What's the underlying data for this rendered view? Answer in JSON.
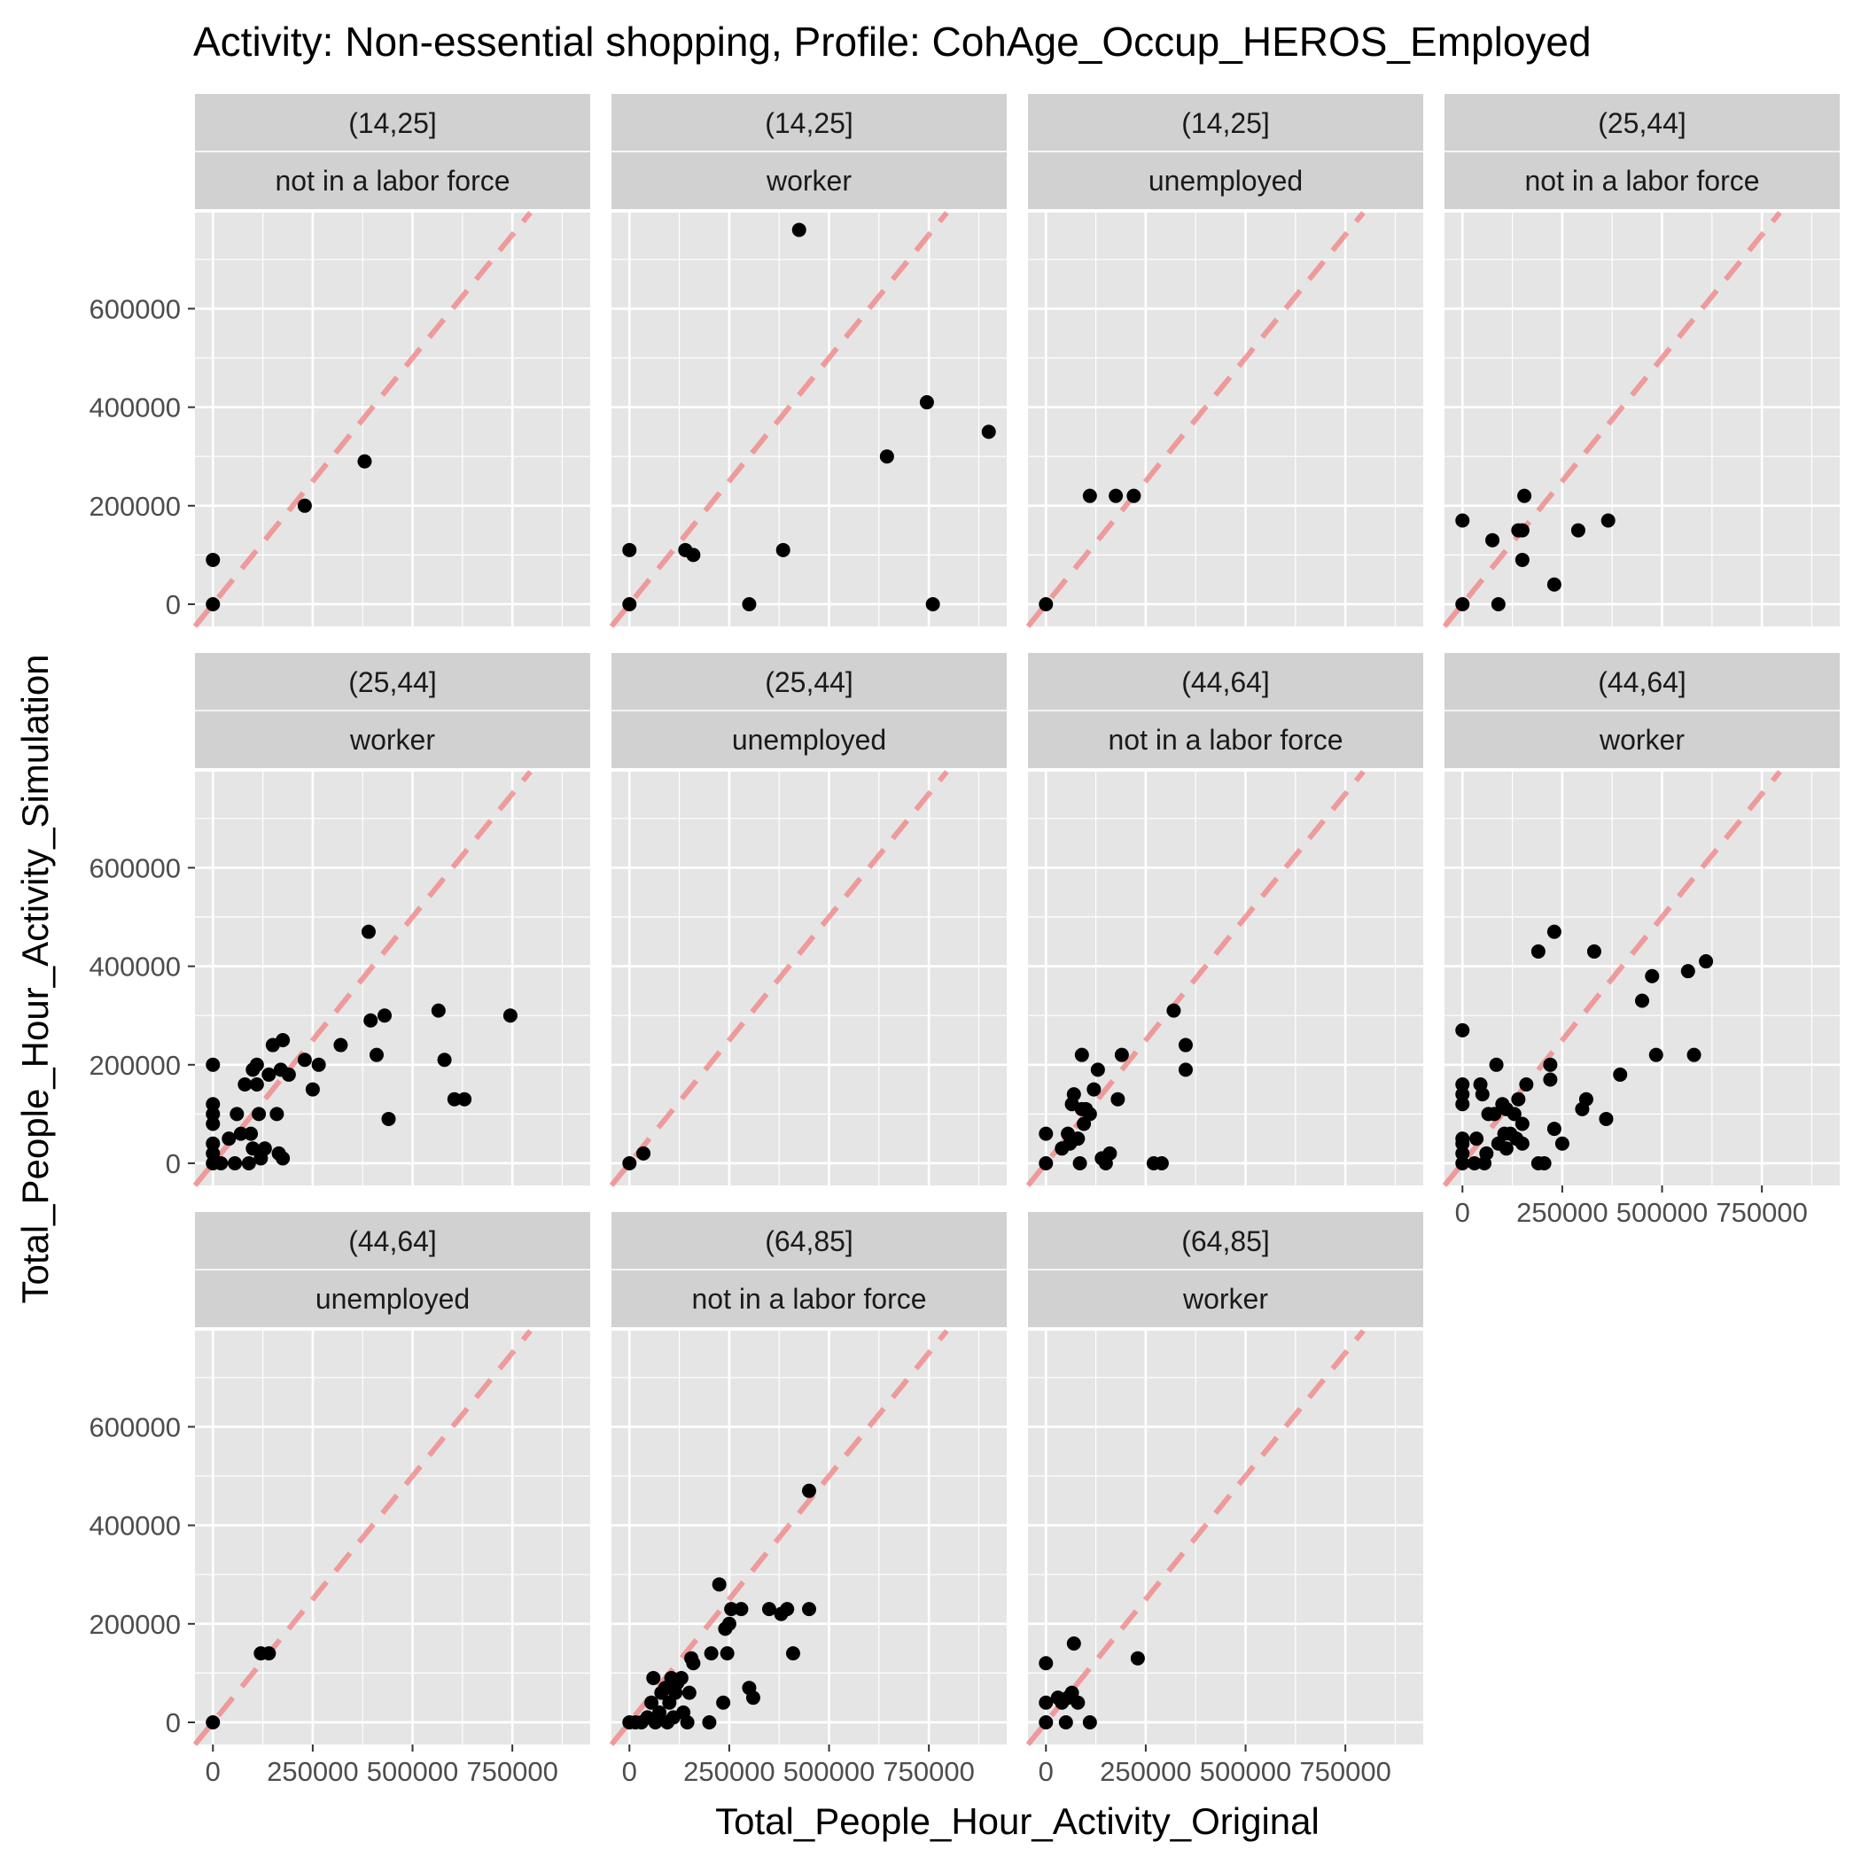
{
  "chart_data": {
    "type": "scatter",
    "title": "Activity: Non-essential shopping, Profile: CohAge_Occup_HEROS_Employed",
    "xlabel": "Total_People_Hour_Activity_Original",
    "ylabel": "Total_People_Hour_Activity_Simulation",
    "xlim": [
      -45000,
      945000
    ],
    "ylim": [
      -45000,
      795000
    ],
    "x_ticks": [
      0,
      250000,
      500000,
      750000
    ],
    "x_tick_labels": [
      "0",
      "250000",
      "500000",
      "750000"
    ],
    "y_ticks": [
      0,
      200000,
      400000,
      600000
    ],
    "y_tick_labels": [
      "0",
      "200000",
      "400000",
      "600000"
    ],
    "reference_line": {
      "type": "y = x",
      "style": "dashed",
      "color": "#F08080"
    },
    "grid": true,
    "panel_background": "#E5E5E5",
    "strip_background": "#D1D1D1",
    "point_color": "#000000",
    "layout": {
      "columns": 4,
      "rows": 3
    },
    "panels": [
      {
        "age": "(14,25]",
        "occupation": "not in a labor force",
        "points": [
          [
            0,
            0
          ],
          [
            0,
            90000
          ],
          [
            230000,
            200000
          ],
          [
            380000,
            290000
          ]
        ]
      },
      {
        "age": "(14,25]",
        "occupation": "worker",
        "points": [
          [
            0,
            0
          ],
          [
            0,
            110000
          ],
          [
            140000,
            110000
          ],
          [
            160000,
            100000
          ],
          [
            300000,
            0
          ],
          [
            385000,
            110000
          ],
          [
            425000,
            760000
          ],
          [
            645000,
            300000
          ],
          [
            745000,
            410000
          ],
          [
            760000,
            0
          ],
          [
            900000,
            350000
          ]
        ]
      },
      {
        "age": "(14,25]",
        "occupation": "unemployed",
        "points": [
          [
            0,
            0
          ],
          [
            110000,
            220000
          ],
          [
            175000,
            220000
          ],
          [
            220000,
            220000
          ]
        ]
      },
      {
        "age": "(25,44]",
        "occupation": "not in a labor force",
        "points": [
          [
            0,
            0
          ],
          [
            0,
            170000
          ],
          [
            75000,
            130000
          ],
          [
            90000,
            0
          ],
          [
            140000,
            150000
          ],
          [
            150000,
            90000
          ],
          [
            155000,
            220000
          ],
          [
            150000,
            150000
          ],
          [
            230000,
            40000
          ],
          [
            290000,
            150000
          ],
          [
            365000,
            170000
          ]
        ]
      },
      {
        "age": "(25,44]",
        "occupation": "worker",
        "points": [
          [
            0,
            0
          ],
          [
            0,
            20000
          ],
          [
            0,
            40000
          ],
          [
            0,
            80000
          ],
          [
            0,
            100000
          ],
          [
            0,
            120000
          ],
          [
            0,
            200000
          ],
          [
            20000,
            0
          ],
          [
            40000,
            50000
          ],
          [
            55000,
            0
          ],
          [
            60000,
            100000
          ],
          [
            70000,
            60000
          ],
          [
            80000,
            160000
          ],
          [
            90000,
            0
          ],
          [
            95000,
            60000
          ],
          [
            100000,
            30000
          ],
          [
            100000,
            190000
          ],
          [
            110000,
            160000
          ],
          [
            110000,
            200000
          ],
          [
            115000,
            100000
          ],
          [
            120000,
            10000
          ],
          [
            130000,
            30000
          ],
          [
            140000,
            180000
          ],
          [
            150000,
            240000
          ],
          [
            160000,
            100000
          ],
          [
            165000,
            20000
          ],
          [
            170000,
            190000
          ],
          [
            175000,
            10000
          ],
          [
            175000,
            250000
          ],
          [
            190000,
            180000
          ],
          [
            230000,
            210000
          ],
          [
            250000,
            150000
          ],
          [
            265000,
            200000
          ],
          [
            320000,
            240000
          ],
          [
            390000,
            470000
          ],
          [
            395000,
            290000
          ],
          [
            410000,
            220000
          ],
          [
            430000,
            300000
          ],
          [
            440000,
            90000
          ],
          [
            565000,
            310000
          ],
          [
            580000,
            210000
          ],
          [
            605000,
            130000
          ],
          [
            630000,
            130000
          ],
          [
            745000,
            300000
          ]
        ]
      },
      {
        "age": "(25,44]",
        "occupation": "unemployed",
        "points": [
          [
            0,
            0
          ],
          [
            35000,
            20000
          ]
        ]
      },
      {
        "age": "(44,64]",
        "occupation": "not in a labor force",
        "points": [
          [
            0,
            0
          ],
          [
            0,
            60000
          ],
          [
            40000,
            30000
          ],
          [
            55000,
            60000
          ],
          [
            60000,
            40000
          ],
          [
            65000,
            120000
          ],
          [
            70000,
            140000
          ],
          [
            80000,
            50000
          ],
          [
            85000,
            0
          ],
          [
            90000,
            110000
          ],
          [
            95000,
            80000
          ],
          [
            90000,
            220000
          ],
          [
            100000,
            110000
          ],
          [
            110000,
            100000
          ],
          [
            120000,
            150000
          ],
          [
            130000,
            190000
          ],
          [
            140000,
            10000
          ],
          [
            150000,
            0
          ],
          [
            160000,
            20000
          ],
          [
            180000,
            130000
          ],
          [
            190000,
            220000
          ],
          [
            270000,
            0
          ],
          [
            290000,
            0
          ],
          [
            320000,
            310000
          ],
          [
            350000,
            240000
          ],
          [
            350000,
            190000
          ]
        ]
      },
      {
        "age": "(44,64]",
        "occupation": "worker",
        "points": [
          [
            0,
            0
          ],
          [
            0,
            20000
          ],
          [
            0,
            40000
          ],
          [
            0,
            50000
          ],
          [
            0,
            120000
          ],
          [
            0,
            140000
          ],
          [
            0,
            160000
          ],
          [
            0,
            270000
          ],
          [
            30000,
            0
          ],
          [
            35000,
            50000
          ],
          [
            45000,
            160000
          ],
          [
            50000,
            140000
          ],
          [
            55000,
            0
          ],
          [
            60000,
            20000
          ],
          [
            65000,
            100000
          ],
          [
            80000,
            100000
          ],
          [
            85000,
            200000
          ],
          [
            90000,
            40000
          ],
          [
            100000,
            120000
          ],
          [
            105000,
            60000
          ],
          [
            110000,
            30000
          ],
          [
            110000,
            110000
          ],
          [
            120000,
            60000
          ],
          [
            130000,
            100000
          ],
          [
            135000,
            50000
          ],
          [
            140000,
            130000
          ],
          [
            150000,
            80000
          ],
          [
            150000,
            40000
          ],
          [
            160000,
            160000
          ],
          [
            190000,
            0
          ],
          [
            190000,
            430000
          ],
          [
            205000,
            0
          ],
          [
            220000,
            200000
          ],
          [
            220000,
            170000
          ],
          [
            230000,
            470000
          ],
          [
            230000,
            70000
          ],
          [
            250000,
            40000
          ],
          [
            300000,
            110000
          ],
          [
            310000,
            130000
          ],
          [
            330000,
            430000
          ],
          [
            360000,
            90000
          ],
          [
            395000,
            180000
          ],
          [
            450000,
            330000
          ],
          [
            475000,
            380000
          ],
          [
            485000,
            220000
          ],
          [
            565000,
            390000
          ],
          [
            580000,
            220000
          ],
          [
            610000,
            410000
          ]
        ]
      },
      {
        "age": "(44,64]",
        "occupation": "unemployed",
        "points": [
          [
            0,
            0
          ],
          [
            120000,
            140000
          ],
          [
            140000,
            140000
          ]
        ]
      },
      {
        "age": "(64,85]",
        "occupation": "not in a labor force",
        "points": [
          [
            0,
            0
          ],
          [
            15000,
            0
          ],
          [
            30000,
            0
          ],
          [
            45000,
            10000
          ],
          [
            55000,
            40000
          ],
          [
            60000,
            90000
          ],
          [
            65000,
            0
          ],
          [
            75000,
            20000
          ],
          [
            80000,
            60000
          ],
          [
            90000,
            70000
          ],
          [
            95000,
            0
          ],
          [
            100000,
            40000
          ],
          [
            105000,
            90000
          ],
          [
            110000,
            10000
          ],
          [
            115000,
            60000
          ],
          [
            120000,
            80000
          ],
          [
            130000,
            90000
          ],
          [
            135000,
            20000
          ],
          [
            145000,
            0
          ],
          [
            150000,
            60000
          ],
          [
            155000,
            130000
          ],
          [
            160000,
            120000
          ],
          [
            200000,
            0
          ],
          [
            205000,
            140000
          ],
          [
            225000,
            280000
          ],
          [
            235000,
            40000
          ],
          [
            240000,
            190000
          ],
          [
            245000,
            140000
          ],
          [
            250000,
            200000
          ],
          [
            255000,
            230000
          ],
          [
            280000,
            230000
          ],
          [
            300000,
            70000
          ],
          [
            310000,
            50000
          ],
          [
            350000,
            230000
          ],
          [
            380000,
            220000
          ],
          [
            395000,
            230000
          ],
          [
            410000,
            140000
          ],
          [
            450000,
            470000
          ],
          [
            450000,
            230000
          ]
        ]
      },
      {
        "age": "(64,85]",
        "occupation": "worker",
        "points": [
          [
            0,
            0
          ],
          [
            0,
            40000
          ],
          [
            0,
            120000
          ],
          [
            30000,
            50000
          ],
          [
            40000,
            40000
          ],
          [
            50000,
            0
          ],
          [
            55000,
            50000
          ],
          [
            65000,
            60000
          ],
          [
            70000,
            160000
          ],
          [
            80000,
            40000
          ],
          [
            110000,
            0
          ],
          [
            230000,
            130000
          ]
        ]
      }
    ]
  }
}
